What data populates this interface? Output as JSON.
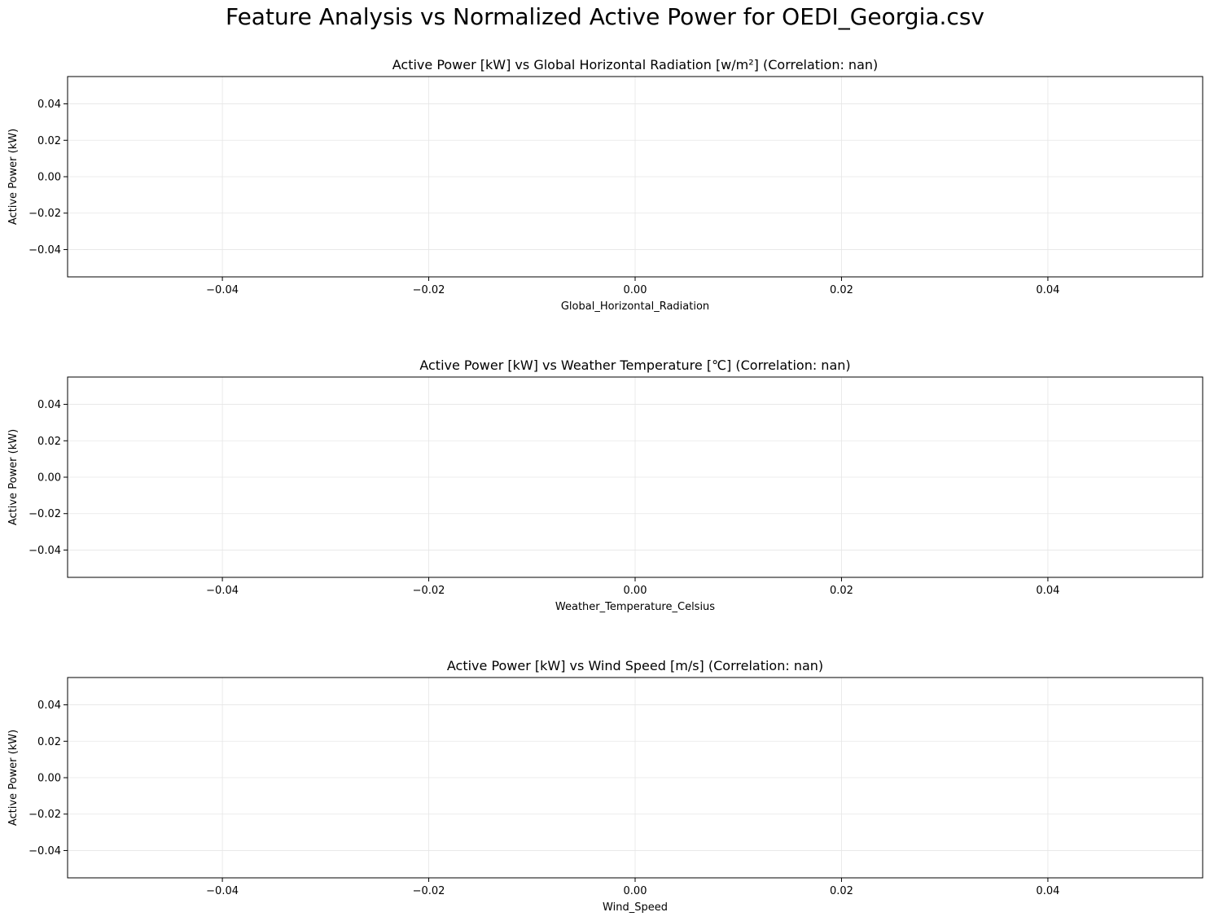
{
  "figure": {
    "title": "Feature Analysis vs Normalized Active Power for OEDI_Georgia.csv"
  },
  "chart_data": [
    {
      "type": "scatter",
      "title": "Active Power [kW] vs Global Horizontal Radiation [w/m²] (Correlation: nan)",
      "xlabel": "Global_Horizontal_Radiation",
      "ylabel": "Active Power (kW)",
      "xlim": [
        -0.055,
        0.055
      ],
      "ylim": [
        -0.055,
        0.055
      ],
      "xticks": [
        -0.04,
        -0.02,
        0.0,
        0.02,
        0.04
      ],
      "yticks": [
        -0.04,
        -0.02,
        0.0,
        0.02,
        0.04
      ],
      "xtick_labels": [
        "−0.04",
        "−0.02",
        "0.00",
        "0.02",
        "0.04"
      ],
      "ytick_labels": [
        "−0.04",
        "−0.02",
        "0.00",
        "0.02",
        "0.04"
      ],
      "grid": true,
      "series": [
        {
          "x": [],
          "y": []
        }
      ]
    },
    {
      "type": "scatter",
      "title": "Active Power [kW] vs Weather Temperature [℃] (Correlation: nan)",
      "xlabel": "Weather_Temperature_Celsius",
      "ylabel": "Active Power (kW)",
      "xlim": [
        -0.055,
        0.055
      ],
      "ylim": [
        -0.055,
        0.055
      ],
      "xticks": [
        -0.04,
        -0.02,
        0.0,
        0.02,
        0.04
      ],
      "yticks": [
        -0.04,
        -0.02,
        0.0,
        0.02,
        0.04
      ],
      "xtick_labels": [
        "−0.04",
        "−0.02",
        "0.00",
        "0.02",
        "0.04"
      ],
      "ytick_labels": [
        "−0.04",
        "−0.02",
        "0.00",
        "0.02",
        "0.04"
      ],
      "grid": true,
      "series": [
        {
          "x": [],
          "y": []
        }
      ]
    },
    {
      "type": "scatter",
      "title": "Active Power [kW] vs Wind Speed [m/s] (Correlation: nan)",
      "xlabel": "Wind_Speed",
      "ylabel": "Active Power (kW)",
      "xlim": [
        -0.055,
        0.055
      ],
      "ylim": [
        -0.055,
        0.055
      ],
      "xticks": [
        -0.04,
        -0.02,
        0.0,
        0.02,
        0.04
      ],
      "yticks": [
        -0.04,
        -0.02,
        0.0,
        0.02,
        0.04
      ],
      "xtick_labels": [
        "−0.04",
        "−0.02",
        "0.00",
        "0.02",
        "0.04"
      ],
      "ytick_labels": [
        "−0.04",
        "−0.02",
        "0.00",
        "0.02",
        "0.04"
      ],
      "grid": true,
      "series": [
        {
          "x": [],
          "y": []
        }
      ]
    }
  ],
  "colors": {
    "grid": "#e6e6e6",
    "axes": "#000000",
    "background": "#ffffff"
  }
}
